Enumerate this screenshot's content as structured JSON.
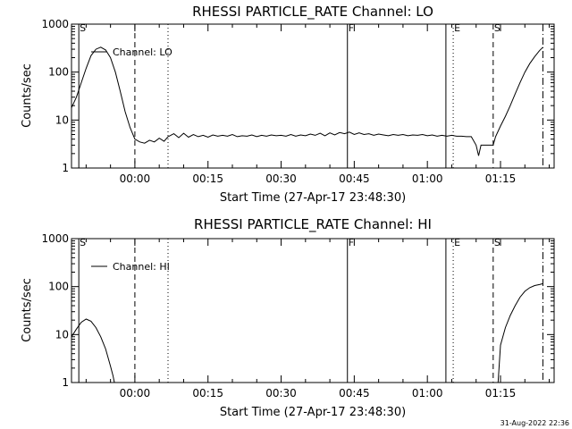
{
  "footer": {
    "timestamp": "31-Aug-2022 22:36"
  },
  "chart_data": [
    {
      "type": "line",
      "title": "RHESSI PARTICLE_RATE Channel: LO",
      "xlabel": "Start Time (27-Apr-17 23:48:30)",
      "ylabel": "Counts/sec",
      "yscale": "log",
      "ylim": [
        1,
        1000
      ],
      "xlim": [
        -13,
        86
      ],
      "x_units": "minutes after 00:00",
      "x_ticks": [
        {
          "value": 0,
          "label": "00:00"
        },
        {
          "value": 15,
          "label": "00:15"
        },
        {
          "value": 30,
          "label": "00:30"
        },
        {
          "value": 45,
          "label": "00:45"
        },
        {
          "value": 60,
          "label": "01:00"
        },
        {
          "value": 75,
          "label": "01:15"
        }
      ],
      "y_ticks": [
        {
          "value": 1,
          "label": "1"
        },
        {
          "value": 10,
          "label": "10"
        },
        {
          "value": 100,
          "label": "100"
        },
        {
          "value": 1000,
          "label": "1000"
        }
      ],
      "legend": {
        "label": "Channel: LO",
        "position": "top-left"
      },
      "markers": [
        {
          "x": -11.5,
          "label": "S",
          "style": "solid"
        },
        {
          "x": 0,
          "label": "",
          "style": "dashed"
        },
        {
          "x": 6.8,
          "label": "",
          "style": "dotted"
        },
        {
          "x": 43.6,
          "label": "F",
          "style": "solid"
        },
        {
          "x": 63.8,
          "label": "",
          "style": "solid"
        },
        {
          "x": 65.3,
          "label": "E",
          "style": "dotted"
        },
        {
          "x": 73.5,
          "label": "S",
          "style": "dashed"
        },
        {
          "x": 83.7,
          "label": "",
          "style": "dashdot"
        }
      ],
      "series": [
        {
          "x": [
            -13,
            -12,
            -11,
            -10,
            -9,
            -8,
            -7,
            -6,
            -5,
            -4,
            -3,
            -2,
            -1,
            0,
            1,
            2,
            3,
            4,
            5,
            6,
            6.8,
            7,
            8,
            9,
            10,
            11,
            12,
            13,
            14,
            15,
            16,
            17,
            18,
            19,
            20,
            21,
            22,
            23,
            24,
            25,
            26,
            27,
            28,
            29,
            30,
            31,
            32,
            33,
            34,
            35,
            36,
            37,
            38,
            39,
            40,
            41,
            42,
            43,
            44,
            45,
            46,
            47,
            48,
            49,
            50,
            51,
            52,
            53,
            54,
            55,
            56,
            57,
            58,
            59,
            60,
            61,
            62,
            63,
            64,
            65,
            66,
            67,
            68,
            69,
            70,
            70.5,
            71,
            72,
            73,
            73.5,
            74,
            75,
            76,
            77,
            78,
            79,
            80,
            81,
            82,
            83,
            83.7
          ],
          "y": [
            18,
            30,
            60,
            120,
            220,
            300,
            330,
            290,
            200,
            100,
            40,
            15,
            7,
            4,
            3.5,
            3.3,
            3.8,
            3.5,
            4.2,
            3.6,
            4.5,
            4.6,
            5.2,
            4.3,
            5.3,
            4.4,
            5.0,
            4.5,
            4.8,
            4.4,
            4.9,
            4.6,
            4.8,
            4.6,
            5.0,
            4.5,
            4.7,
            4.6,
            4.9,
            4.5,
            4.8,
            4.6,
            4.9,
            4.7,
            4.8,
            4.6,
            5.0,
            4.6,
            4.9,
            4.7,
            5.1,
            4.8,
            5.3,
            4.7,
            5.4,
            4.9,
            5.5,
            5.2,
            5.6,
            5.0,
            5.4,
            5.0,
            5.2,
            4.8,
            5.1,
            4.9,
            4.7,
            5.0,
            4.8,
            5.0,
            4.7,
            4.9,
            4.8,
            5.0,
            4.7,
            4.9,
            4.6,
            4.8,
            4.6,
            4.8,
            4.6,
            4.6,
            4.5,
            4.5,
            3.0,
            1.8,
            3.0,
            3.0,
            3.0,
            3.0,
            4.5,
            7.5,
            12,
            20,
            35,
            60,
            100,
            150,
            210,
            280,
            330
          ]
        }
      ]
    },
    {
      "type": "line",
      "title": "RHESSI PARTICLE_RATE Channel: HI",
      "xlabel": "Start Time (27-Apr-17 23:48:30)",
      "ylabel": "Counts/sec",
      "yscale": "log",
      "ylim": [
        1,
        1000
      ],
      "xlim": [
        -13,
        86
      ],
      "x_units": "minutes after 00:00",
      "x_ticks": [
        {
          "value": 0,
          "label": "00:00"
        },
        {
          "value": 15,
          "label": "00:15"
        },
        {
          "value": 30,
          "label": "00:30"
        },
        {
          "value": 45,
          "label": "00:45"
        },
        {
          "value": 60,
          "label": "01:00"
        },
        {
          "value": 75,
          "label": "01:15"
        }
      ],
      "y_ticks": [
        {
          "value": 1,
          "label": "1"
        },
        {
          "value": 10,
          "label": "10"
        },
        {
          "value": 100,
          "label": "100"
        },
        {
          "value": 1000,
          "label": "1000"
        }
      ],
      "legend": {
        "label": "Channel: HI",
        "position": "top-left"
      },
      "markers": [
        {
          "x": -11.5,
          "label": "S",
          "style": "solid"
        },
        {
          "x": 0,
          "label": "",
          "style": "dashed"
        },
        {
          "x": 6.8,
          "label": "",
          "style": "dotted"
        },
        {
          "x": 43.6,
          "label": "F",
          "style": "solid"
        },
        {
          "x": 63.8,
          "label": "",
          "style": "solid"
        },
        {
          "x": 65.3,
          "label": "E",
          "style": "dotted"
        },
        {
          "x": 73.5,
          "label": "S",
          "style": "dashed"
        },
        {
          "x": 83.7,
          "label": "",
          "style": "dashdot"
        }
      ],
      "series": [
        {
          "x": [
            -13,
            -12,
            -11,
            -10,
            -9,
            -8,
            -7,
            -6,
            -5,
            -4.5,
            -4.2
          ],
          "y": [
            9,
            13,
            18,
            21,
            19,
            14,
            9,
            5,
            2.2,
            1.4,
            1.0
          ]
        },
        {
          "x": [
            74.5,
            75,
            76,
            77,
            78,
            79,
            80,
            81,
            82,
            83,
            83.7
          ],
          "y": [
            1.0,
            6,
            14,
            25,
            40,
            60,
            80,
            95,
            105,
            110,
            115
          ]
        }
      ]
    }
  ]
}
